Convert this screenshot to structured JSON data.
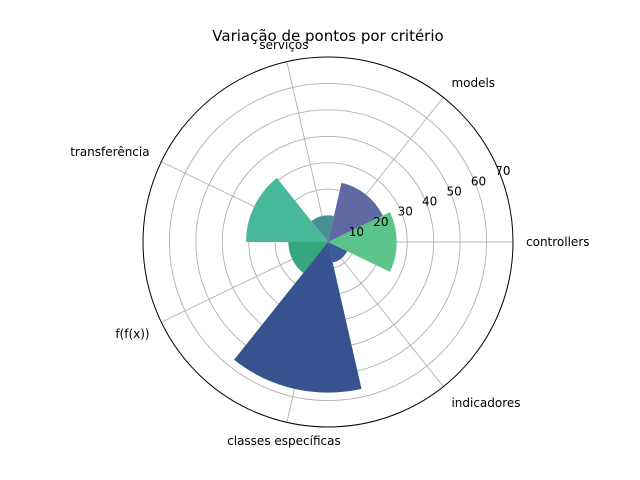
{
  "chart_data": {
    "type": "polar-bar",
    "title": "Variação de pontos por critério",
    "categories": [
      "controllers",
      "models",
      "serviços",
      "transferência",
      "f(f(x))",
      "classes específicas",
      "indicadores"
    ],
    "values": [
      26,
      23,
      10,
      31,
      15,
      57,
      8
    ],
    "colors": [
      "#5cc38b",
      "#5f6aa3",
      "#4a8d96",
      "#47b89a",
      "#35a77d",
      "#36538f",
      "#3b5a98"
    ],
    "rlim": [
      0,
      70
    ],
    "r_ticks": [
      10,
      20,
      30,
      40,
      50,
      60,
      70
    ],
    "grid": true
  }
}
